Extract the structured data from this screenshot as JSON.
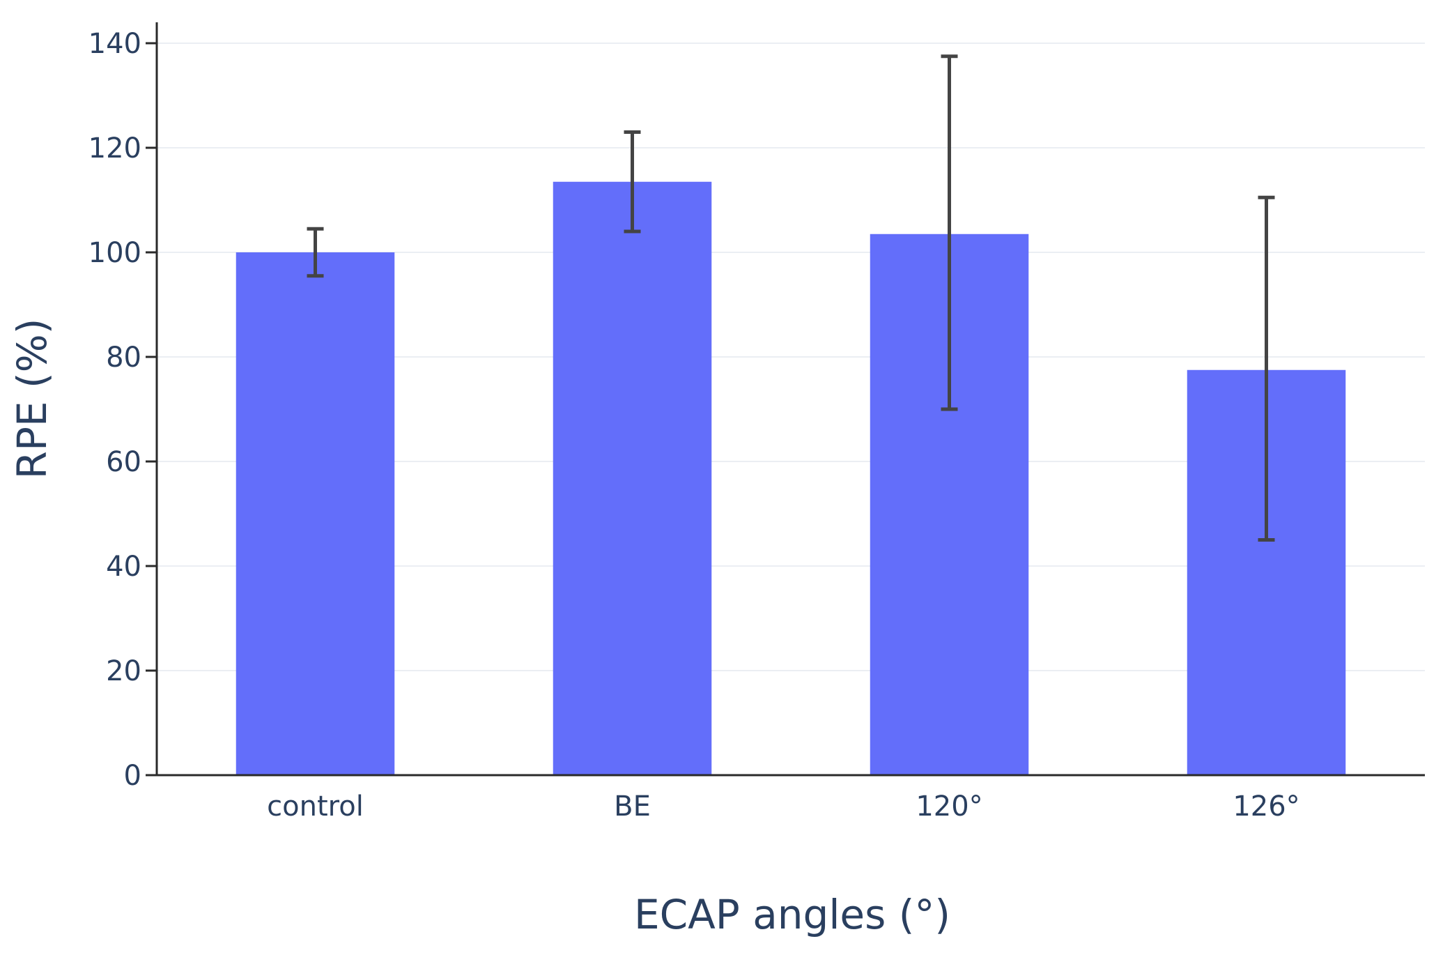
{
  "chart_data": {
    "type": "bar",
    "title": "",
    "xlabel": "ECAP angles (°)",
    "ylabel": "RPE (%)",
    "categories": [
      "control",
      "BE",
      "120°",
      "126°"
    ],
    "series": [
      {
        "name": "RPE",
        "values": [
          100,
          113.5,
          103.5,
          77.5
        ],
        "error_low": [
          95.5,
          104,
          70,
          45
        ],
        "error_high": [
          104.5,
          123,
          137.5,
          110.5
        ],
        "color": "#636efa"
      }
    ],
    "ylim": [
      0,
      140
    ],
    "yticks": [
      0,
      20,
      40,
      60,
      80,
      100,
      120,
      140
    ],
    "grid": true,
    "legend": "none"
  }
}
